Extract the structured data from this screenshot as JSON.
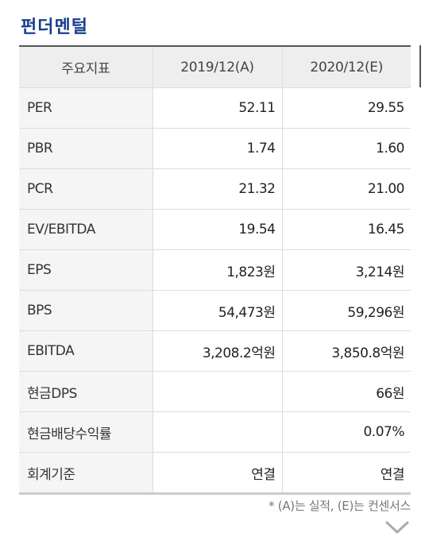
{
  "section": {
    "title": "펀더멘털"
  },
  "table": {
    "headers": [
      "주요지표",
      "2019/12(A)",
      "2020/12(E)"
    ],
    "rows": [
      {
        "metric": "PER",
        "a": "52.11",
        "e": "29.55"
      },
      {
        "metric": "PBR",
        "a": "1.74",
        "e": "1.60"
      },
      {
        "metric": "PCR",
        "a": "21.32",
        "e": "21.00"
      },
      {
        "metric": "EV/EBITDA",
        "a": "19.54",
        "e": "16.45"
      },
      {
        "metric": "EPS",
        "a": "1,823원",
        "e": "3,214원"
      },
      {
        "metric": "BPS",
        "a": "54,473원",
        "e": "59,296원"
      },
      {
        "metric": "EBITDA",
        "a": "3,208.2억원",
        "e": "3,850.8억원"
      },
      {
        "metric": "현금DPS",
        "a": "",
        "e": "66원"
      },
      {
        "metric": "현금배당수익률",
        "a": "",
        "e": "0.07%"
      },
      {
        "metric": "회계기준",
        "a": "연결",
        "e": "연결"
      }
    ]
  },
  "footnote": "* (A)는 실적, (E)는 컨센서스",
  "icons": {
    "expand": "chevron-down-icon"
  },
  "colors": {
    "title": "#1a3f8f",
    "header_bg": "#eeeeee",
    "label_bg": "#f5f5f5",
    "grid": "#dddddd"
  }
}
